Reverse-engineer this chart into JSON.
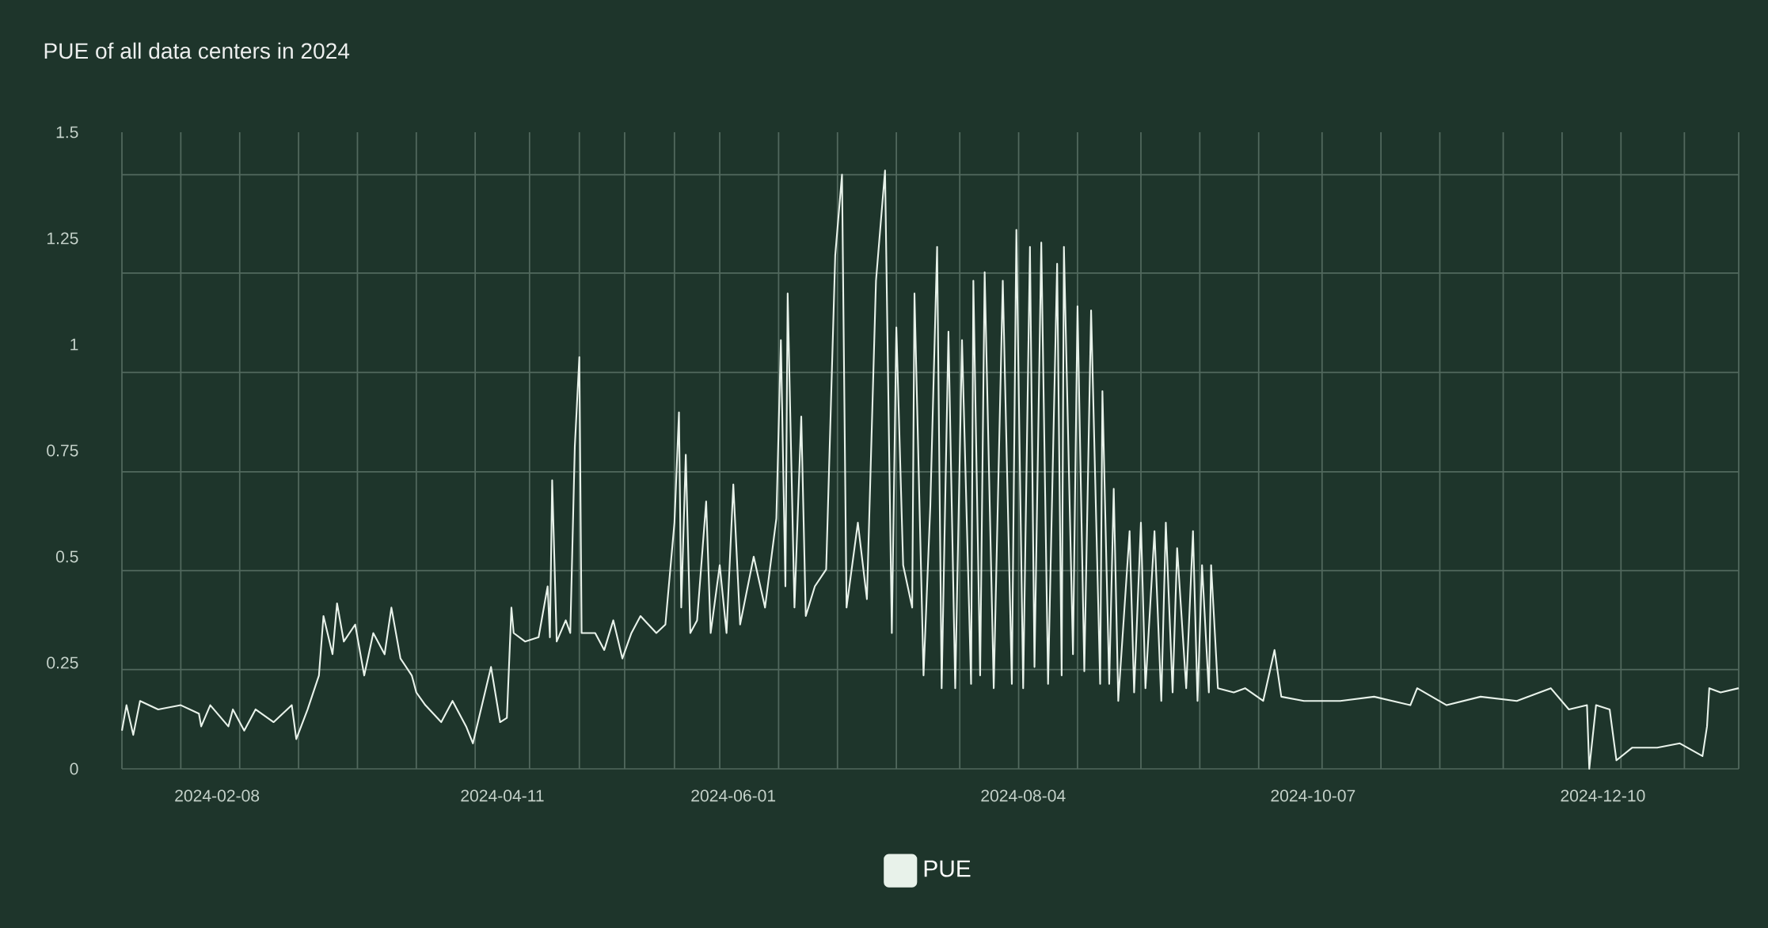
{
  "chart_data": {
    "type": "line",
    "title": "PUE of all data centers in 2024",
    "x": [
      "2024-01-18",
      "2024-01-19",
      "2024-01-20T12:00",
      "2024-01-22",
      "2024-01-26",
      "2024-01-31",
      "2024-02-04",
      "2024-02-04T12:00",
      "2024-02-06T12:00",
      "2024-02-10T12:00",
      "2024-02-11T12:00",
      "2024-02-14",
      "2024-02-16T12:00",
      "2024-02-20T12:00",
      "2024-02-24T12:00",
      "2024-02-25T12:00",
      "2024-02-28",
      "2024-03-01T12:00",
      "2024-03-02T12:00",
      "2024-03-04T12:00",
      "2024-03-05T12:00",
      "2024-03-07",
      "2024-03-09T12:00",
      "2024-03-11T12:00",
      "2024-03-13T12:00",
      "2024-03-16",
      "2024-03-17T12:00",
      "2024-03-19T12:00",
      "2024-03-22",
      "2024-03-23",
      "2024-03-25",
      "2024-03-28T12:00",
      "2024-03-31",
      "2024-04-03",
      "2024-04-04T12:00",
      "2024-04-06T12:00",
      "2024-04-08T12:00",
      "2024-04-10T12:00",
      "2024-04-12",
      "2024-04-13",
      "2024-04-13T12:00",
      "2024-04-16",
      "2024-04-19",
      "2024-04-21",
      "2024-04-21T12:00",
      "2024-04-22",
      "2024-04-23",
      "2024-04-25",
      "2024-04-26",
      "2024-04-27",
      "2024-04-28",
      "2024-04-28T12:00",
      "2024-05-01T12:00",
      "2024-05-03T12:00",
      "2024-05-05T12:00",
      "2024-05-07T12:00",
      "2024-05-09T12:00",
      "2024-05-11T12:00",
      "2024-05-15",
      "2024-05-17",
      "2024-05-19",
      "2024-05-20",
      "2024-05-20T12:00",
      "2024-05-21T12:00",
      "2024-05-22T12:00",
      "2024-05-24",
      "2024-05-26",
      "2024-05-27",
      "2024-05-29",
      "2024-05-30T12:00",
      "2024-06-01",
      "2024-06-02T12:00",
      "2024-06-05T12:00",
      "2024-06-08",
      "2024-06-10T12:00",
      "2024-06-11T12:00",
      "2024-06-12T12:00",
      "2024-06-13",
      "2024-06-14T12:00",
      "2024-06-16",
      "2024-06-17",
      "2024-06-19",
      "2024-06-21T12:00",
      "2024-06-23T12:00",
      "2024-06-25",
      "2024-06-26",
      "2024-06-28T12:00",
      "2024-06-30T12:00",
      "2024-07-02T12:00",
      "2024-07-04T12:00",
      "2024-07-06",
      "2024-07-07",
      "2024-07-08T12:00",
      "2024-07-10T12:00",
      "2024-07-11",
      "2024-07-13",
      "2024-07-14T12:00",
      "2024-07-16",
      "2024-07-17",
      "2024-07-18T12:00",
      "2024-07-20",
      "2024-07-21T12:00",
      "2024-07-23T12:00",
      "2024-07-24",
      "2024-07-25T12:00",
      "2024-07-26T12:00",
      "2024-07-28T12:00",
      "2024-07-30T12:00",
      "2024-08-01T12:00",
      "2024-08-02T12:00",
      "2024-08-04",
      "2024-08-05T12:00",
      "2024-08-06T12:00",
      "2024-08-08",
      "2024-08-09T12:00",
      "2024-08-11T12:00",
      "2024-08-12T12:00",
      "2024-08-13",
      "2024-08-15",
      "2024-08-16",
      "2024-08-17T12:00",
      "2024-08-19",
      "2024-08-21",
      "2024-08-21T12:00",
      "2024-08-23",
      "2024-08-24",
      "2024-08-25",
      "2024-08-27T12:00",
      "2024-08-28T12:00",
      "2024-08-30",
      "2024-08-31",
      "2024-09-02",
      "2024-09-03T12:00",
      "2024-09-04T12:00",
      "2024-09-06",
      "2024-09-07",
      "2024-09-09",
      "2024-09-10T12:00",
      "2024-09-11T12:00",
      "2024-09-12T12:00",
      "2024-09-14",
      "2024-09-14T12:00",
      "2024-09-16",
      "2024-09-19T12:00",
      "2024-09-22",
      "2024-09-26",
      "2024-09-28T12:00",
      "2024-09-30",
      "2024-10-05",
      "2024-10-13",
      "2024-10-20T12:00",
      "2024-10-28T12:00",
      "2024-10-30",
      "2024-11-05T12:00",
      "2024-11-13",
      "2024-11-21",
      "2024-11-28T12:00",
      "2024-12-02T12:00",
      "2024-12-06T12:00",
      "2024-12-07",
      "2024-12-08T12:00",
      "2024-12-11T12:00",
      "2024-12-13",
      "2024-12-16T12:00",
      "2024-12-22",
      "2024-12-27",
      "2025-01-01",
      "2025-01-02",
      "2025-01-02T12:00",
      "2025-01-05",
      "2025-01-09"
    ],
    "series": [
      {
        "name": "PUE",
        "color": "#e8f2ea",
        "values": [
          0.09,
          0.15,
          0.08,
          0.16,
          0.14,
          0.15,
          0.13,
          0.1,
          0.15,
          0.1,
          0.14,
          0.09,
          0.14,
          0.11,
          0.15,
          0.07,
          0.14,
          0.22,
          0.36,
          0.27,
          0.39,
          0.3,
          0.34,
          0.22,
          0.32,
          0.27,
          0.38,
          0.26,
          0.22,
          0.18,
          0.15,
          0.11,
          0.16,
          0.1,
          0.06,
          0.15,
          0.24,
          0.11,
          0.12,
          0.38,
          0.32,
          0.3,
          0.31,
          0.43,
          0.31,
          0.68,
          0.3,
          0.35,
          0.32,
          0.76,
          0.97,
          0.32,
          0.32,
          0.28,
          0.35,
          0.26,
          0.32,
          0.36,
          0.32,
          0.34,
          0.58,
          0.84,
          0.38,
          0.74,
          0.32,
          0.35,
          0.63,
          0.32,
          0.48,
          0.32,
          0.67,
          0.34,
          0.5,
          0.38,
          0.59,
          1.01,
          0.43,
          1.12,
          0.38,
          0.83,
          0.36,
          0.43,
          0.47,
          1.21,
          1.4,
          0.38,
          0.58,
          0.4,
          1.15,
          1.41,
          0.32,
          1.04,
          0.48,
          0.38,
          1.12,
          0.22,
          0.62,
          1.23,
          0.19,
          1.03,
          0.19,
          1.01,
          0.2,
          1.15,
          0.22,
          1.17,
          0.19,
          1.15,
          0.2,
          1.27,
          0.19,
          1.23,
          0.24,
          1.24,
          0.2,
          1.19,
          0.22,
          1.23,
          0.27,
          1.09,
          0.23,
          1.08,
          0.2,
          0.89,
          0.2,
          0.66,
          0.16,
          0.56,
          0.18,
          0.58,
          0.19,
          0.56,
          0.16,
          0.58,
          0.18,
          0.52,
          0.19,
          0.56,
          0.16,
          0.48,
          0.18,
          0.48,
          0.19,
          0.18,
          0.19,
          0.16,
          0.28,
          0.17,
          0.16,
          0.16,
          0.17,
          0.15,
          0.19,
          0.15,
          0.17,
          0.16,
          0.19,
          0.14,
          0.15,
          0,
          0.15,
          0.14,
          0.02,
          0.05,
          0.05,
          0.06,
          0.03,
          0.1,
          0.19,
          0.18,
          0.19
        ]
      }
    ],
    "xlim": [
      "2024-01-18",
      "2025-01-09"
    ],
    "xticks": [
      {
        "value": "2024-01-18",
        "label": null
      },
      {
        "value": "2024-01-31",
        "label": null
      },
      "2024-02-08",
      {
        "value": "2024-02-13",
        "label": null
      },
      {
        "value": "2024-02-26",
        "label": null
      },
      {
        "value": "2024-03-10",
        "label": null
      },
      {
        "value": "2024-03-23",
        "label": null
      },
      {
        "value": "2024-04-05",
        "label": null
      },
      "2024-04-11",
      {
        "value": "2024-04-17",
        "label": null
      },
      {
        "value": "2024-04-28",
        "label": null
      },
      {
        "value": "2024-05-08",
        "label": null
      },
      {
        "value": "2024-05-19",
        "label": null
      },
      {
        "value": "2024-05-29",
        "label": null
      },
      "2024-06-01",
      {
        "value": "2024-06-11",
        "label": null
      },
      {
        "value": "2024-06-24",
        "label": null
      },
      {
        "value": "2024-07-07",
        "label": null
      },
      {
        "value": "2024-07-21",
        "label": null
      },
      {
        "value": "2024-08-03",
        "label": null
      },
      "2024-08-04",
      {
        "value": "2024-08-16",
        "label": null
      },
      {
        "value": "2024-08-30",
        "label": null
      },
      {
        "value": "2024-09-12",
        "label": null
      },
      {
        "value": "2024-09-25",
        "label": null
      },
      "2024-10-07",
      {
        "value": "2024-10-09",
        "label": null
      },
      {
        "value": "2024-10-22",
        "label": null
      },
      {
        "value": "2024-11-04",
        "label": null
      },
      {
        "value": "2024-11-18",
        "label": null
      },
      {
        "value": "2024-12-01",
        "label": null
      },
      "2024-12-10",
      {
        "value": "2024-12-14",
        "label": null
      },
      {
        "value": "2024-12-28",
        "label": null
      },
      {
        "value": "2025-01-09",
        "label": null
      }
    ],
    "ylim": [
      0,
      1.5
    ],
    "yticks": [
      0,
      {
        "value": 0.234,
        "label": null
      },
      0.25,
      {
        "value": 0.467,
        "label": null
      },
      0.5,
      {
        "value": 0.7,
        "label": null
      },
      0.75,
      {
        "value": 0.934,
        "label": null
      },
      1,
      {
        "value": 1.168,
        "label": null
      },
      1.25,
      {
        "value": 1.4,
        "label": null
      },
      1.5
    ],
    "grid": true,
    "legend": "bottom"
  }
}
